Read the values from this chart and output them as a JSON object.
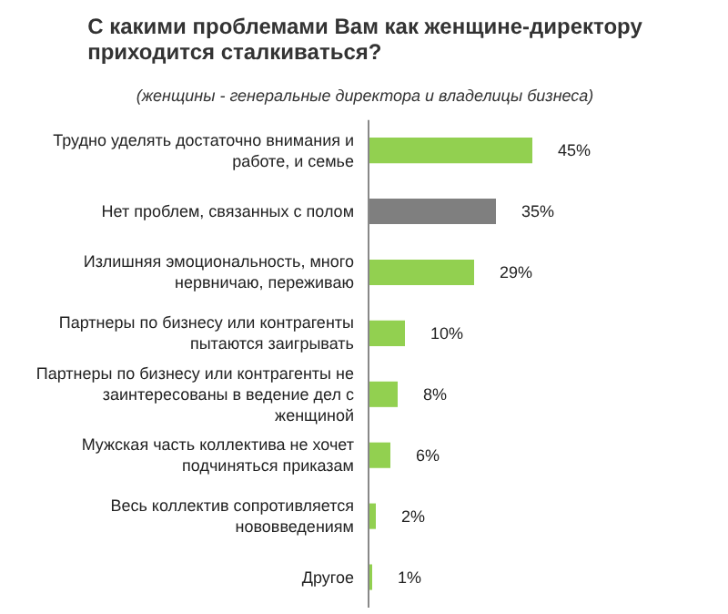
{
  "chart_data": {
    "type": "bar",
    "orientation": "horizontal",
    "title": "С какими проблемами Вам как женщине-директору приходится сталкиваться?",
    "subtitle": "(женщины - генеральные директора и владелицы бизнеса)",
    "categories": [
      "Трудно уделять достаточно внимания и работе, и семье",
      "Нет проблем, связанных с полом",
      "Излишняя эмоциональность, много нервничаю, переживаю",
      "Партнеры по бизнесу или контрагенты пытаются заигрывать",
      "Партнеры по бизнесу или контрагенты не заинтересованы в ведение дел с женщиной",
      "Мужская часть коллектива не хочет подчиняться приказам",
      "Весь коллектив сопротивляется нововведениям",
      "Другое"
    ],
    "values": [
      45,
      35,
      29,
      10,
      8,
      6,
      2,
      1
    ],
    "value_labels": [
      "45%",
      "35%",
      "29%",
      "10%",
      "8%",
      "6%",
      "2%",
      "1%"
    ],
    "colors": [
      "#92d050",
      "#7f7f7f",
      "#92d050",
      "#92d050",
      "#92d050",
      "#92d050",
      "#92d050",
      "#92d050"
    ],
    "grid": false
  }
}
